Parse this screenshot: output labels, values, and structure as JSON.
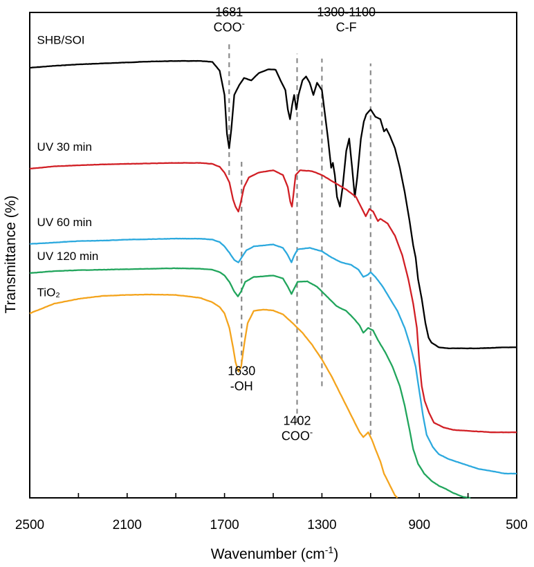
{
  "chart_data": {
    "type": "line",
    "xlabel": "Wavenumber (cm",
    "xlabel_sup": "-1",
    "xlabel_close": ")",
    "ylabel": "Transmittance (%)",
    "xlim": [
      2500,
      500
    ],
    "ylim": [
      0,
      100
    ],
    "x_reversed": true,
    "x_ticks": [
      2500,
      2100,
      1700,
      1300,
      900,
      500
    ],
    "grid": false,
    "series": [
      {
        "name": "SHB/SOI",
        "color": "#000000",
        "points": [
          [
            2500,
            88.6
          ],
          [
            2400,
            89.0
          ],
          [
            2300,
            89.3
          ],
          [
            2200,
            89.5
          ],
          [
            2100,
            89.7
          ],
          [
            2000,
            89.9
          ],
          [
            1900,
            90.0
          ],
          [
            1800,
            90.0
          ],
          [
            1750,
            89.8
          ],
          [
            1720,
            88.0
          ],
          [
            1700,
            83.0
          ],
          [
            1690,
            75.0
          ],
          [
            1681,
            72.0
          ],
          [
            1672,
            76.0
          ],
          [
            1660,
            83.0
          ],
          [
            1640,
            85.0
          ],
          [
            1620,
            86.5
          ],
          [
            1590,
            86.0
          ],
          [
            1560,
            87.5
          ],
          [
            1520,
            88.3
          ],
          [
            1490,
            88.2
          ],
          [
            1470,
            86.0
          ],
          [
            1450,
            84.0
          ],
          [
            1440,
            80.0
          ],
          [
            1431,
            78.0
          ],
          [
            1422,
            81.0
          ],
          [
            1414,
            83.0
          ],
          [
            1405,
            80.0
          ],
          [
            1396,
            83.0
          ],
          [
            1380,
            86.0
          ],
          [
            1365,
            86.8
          ],
          [
            1350,
            85.5
          ],
          [
            1335,
            83.0
          ],
          [
            1320,
            85.5
          ],
          [
            1300,
            84.0
          ],
          [
            1290,
            80.0
          ],
          [
            1275,
            74.0
          ],
          [
            1262,
            68.0
          ],
          [
            1255,
            69.0
          ],
          [
            1247,
            66.5
          ],
          [
            1238,
            62.0
          ],
          [
            1226,
            60.0
          ],
          [
            1215,
            64.0
          ],
          [
            1200,
            71.5
          ],
          [
            1188,
            74.0
          ],
          [
            1176,
            68.0
          ],
          [
            1165,
            62.0
          ],
          [
            1155,
            66.0
          ],
          [
            1140,
            74.0
          ],
          [
            1128,
            77.5
          ],
          [
            1118,
            79.0
          ],
          [
            1100,
            80.0
          ],
          [
            1080,
            78.5
          ],
          [
            1060,
            78.0
          ],
          [
            1045,
            75.5
          ],
          [
            1035,
            76.0
          ],
          [
            1020,
            74.5
          ],
          [
            1000,
            72.0
          ],
          [
            980,
            68.0
          ],
          [
            960,
            63.0
          ],
          [
            940,
            57.0
          ],
          [
            925,
            52.0
          ],
          [
            915,
            49.5
          ],
          [
            905,
            45.0
          ],
          [
            890,
            41.0
          ],
          [
            875,
            36.0
          ],
          [
            862,
            33.0
          ],
          [
            850,
            32.0
          ],
          [
            820,
            31.0
          ],
          [
            780,
            30.8
          ],
          [
            720,
            30.8
          ],
          [
            660,
            30.8
          ],
          [
            600,
            30.9
          ],
          [
            550,
            31.0
          ],
          [
            500,
            31.0
          ]
        ]
      },
      {
        "name": "UV 30 min",
        "color": "#d11f25",
        "points": [
          [
            2500,
            67.8
          ],
          [
            2400,
            68.3
          ],
          [
            2300,
            68.5
          ],
          [
            2200,
            68.7
          ],
          [
            2100,
            68.8
          ],
          [
            2000,
            68.9
          ],
          [
            1900,
            69.0
          ],
          [
            1800,
            69.0
          ],
          [
            1750,
            68.8
          ],
          [
            1720,
            68.2
          ],
          [
            1700,
            67.0
          ],
          [
            1680,
            65.0
          ],
          [
            1665,
            61.5
          ],
          [
            1655,
            60.0
          ],
          [
            1643,
            59.0
          ],
          [
            1635,
            60.5
          ],
          [
            1620,
            64.0
          ],
          [
            1600,
            66.0
          ],
          [
            1560,
            67.0
          ],
          [
            1500,
            67.5
          ],
          [
            1460,
            66.5
          ],
          [
            1440,
            64.0
          ],
          [
            1430,
            61.0
          ],
          [
            1423,
            60.0
          ],
          [
            1418,
            62.0
          ],
          [
            1408,
            66.5
          ],
          [
            1390,
            67.5
          ],
          [
            1340,
            67.3
          ],
          [
            1300,
            66.5
          ],
          [
            1250,
            65.0
          ],
          [
            1200,
            63.5
          ],
          [
            1160,
            62.0
          ],
          [
            1140,
            60.0
          ],
          [
            1120,
            58.0
          ],
          [
            1105,
            59.5
          ],
          [
            1090,
            59.0
          ],
          [
            1070,
            57.0
          ],
          [
            1060,
            57.5
          ],
          [
            1030,
            56.5
          ],
          [
            1000,
            54.0
          ],
          [
            970,
            50.0
          ],
          [
            945,
            45.0
          ],
          [
            925,
            40.0
          ],
          [
            910,
            35.0
          ],
          [
            900,
            28.0
          ],
          [
            890,
            23.0
          ],
          [
            878,
            20.0
          ],
          [
            860,
            17.5
          ],
          [
            840,
            15.5
          ],
          [
            800,
            14.5
          ],
          [
            760,
            14.0
          ],
          [
            700,
            13.8
          ],
          [
            600,
            13.5
          ],
          [
            550,
            13.5
          ],
          [
            500,
            13.5
          ]
        ]
      },
      {
        "name": "UV 60 min",
        "color": "#2ca9de",
        "points": [
          [
            2500,
            52.3
          ],
          [
            2400,
            52.6
          ],
          [
            2300,
            52.9
          ],
          [
            2200,
            53.0
          ],
          [
            2100,
            53.2
          ],
          [
            2000,
            53.3
          ],
          [
            1900,
            53.4
          ],
          [
            1800,
            53.4
          ],
          [
            1750,
            53.2
          ],
          [
            1720,
            52.7
          ],
          [
            1700,
            51.8
          ],
          [
            1680,
            50.5
          ],
          [
            1660,
            49.0
          ],
          [
            1643,
            48.5
          ],
          [
            1630,
            49.5
          ],
          [
            1610,
            51.0
          ],
          [
            1580,
            51.8
          ],
          [
            1500,
            52.2
          ],
          [
            1460,
            51.5
          ],
          [
            1440,
            50.0
          ],
          [
            1425,
            48.5
          ],
          [
            1415,
            49.8
          ],
          [
            1400,
            51.2
          ],
          [
            1350,
            51.5
          ],
          [
            1300,
            50.8
          ],
          [
            1260,
            49.5
          ],
          [
            1220,
            48.5
          ],
          [
            1180,
            48.0
          ],
          [
            1150,
            47.0
          ],
          [
            1130,
            45.5
          ],
          [
            1110,
            46.0
          ],
          [
            1100,
            46.5
          ],
          [
            1080,
            45.5
          ],
          [
            1050,
            43.5
          ],
          [
            1020,
            41.0
          ],
          [
            990,
            38.5
          ],
          [
            960,
            35.0
          ],
          [
            935,
            31.0
          ],
          [
            915,
            27.0
          ],
          [
            900,
            22.0
          ],
          [
            885,
            17.0
          ],
          [
            870,
            13.0
          ],
          [
            845,
            10.5
          ],
          [
            820,
            9.0
          ],
          [
            780,
            8.0
          ],
          [
            720,
            7.0
          ],
          [
            660,
            6.0
          ],
          [
            600,
            5.5
          ],
          [
            550,
            5.0
          ],
          [
            500,
            5.0
          ]
        ]
      },
      {
        "name": "UV 120 min",
        "color": "#21a55c",
        "points": [
          [
            2500,
            46.3
          ],
          [
            2400,
            46.7
          ],
          [
            2300,
            46.9
          ],
          [
            2200,
            47.0
          ],
          [
            2100,
            47.1
          ],
          [
            2000,
            47.2
          ],
          [
            1900,
            47.3
          ],
          [
            1800,
            47.2
          ],
          [
            1750,
            47.0
          ],
          [
            1720,
            46.5
          ],
          [
            1700,
            45.8
          ],
          [
            1680,
            44.5
          ],
          [
            1660,
            42.5
          ],
          [
            1645,
            41.5
          ],
          [
            1632,
            42.5
          ],
          [
            1615,
            44.5
          ],
          [
            1580,
            45.5
          ],
          [
            1500,
            45.8
          ],
          [
            1460,
            45.2
          ],
          [
            1440,
            43.5
          ],
          [
            1425,
            42.0
          ],
          [
            1415,
            43.0
          ],
          [
            1400,
            44.5
          ],
          [
            1360,
            44.6
          ],
          [
            1320,
            43.5
          ],
          [
            1280,
            41.5
          ],
          [
            1240,
            39.5
          ],
          [
            1200,
            38.5
          ],
          [
            1170,
            37.0
          ],
          [
            1145,
            35.5
          ],
          [
            1130,
            34.0
          ],
          [
            1120,
            34.5
          ],
          [
            1110,
            35.0
          ],
          [
            1090,
            34.5
          ],
          [
            1070,
            32.5
          ],
          [
            1040,
            30.0
          ],
          [
            1010,
            27.0
          ],
          [
            980,
            23.0
          ],
          [
            960,
            19.0
          ],
          [
            940,
            14.0
          ],
          [
            925,
            10.0
          ],
          [
            905,
            7.0
          ],
          [
            880,
            5.0
          ],
          [
            850,
            3.5
          ],
          [
            820,
            2.5
          ],
          [
            790,
            1.8
          ],
          [
            760,
            1.0
          ],
          [
            720,
            0.2
          ],
          [
            690,
            0.0
          ]
        ]
      },
      {
        "name": "TiO₂",
        "color": "#f4a41d",
        "points": [
          [
            2500,
            38.0
          ],
          [
            2400,
            40.0
          ],
          [
            2300,
            41.0
          ],
          [
            2200,
            41.6
          ],
          [
            2100,
            41.8
          ],
          [
            2000,
            41.9
          ],
          [
            1900,
            41.8
          ],
          [
            1800,
            41.2
          ],
          [
            1750,
            40.3
          ],
          [
            1720,
            39.3
          ],
          [
            1700,
            38.0
          ],
          [
            1680,
            35.0
          ],
          [
            1665,
            31.0
          ],
          [
            1655,
            28.0
          ],
          [
            1643,
            26.0
          ],
          [
            1632,
            27.0
          ],
          [
            1618,
            32.0
          ],
          [
            1605,
            36.0
          ],
          [
            1580,
            38.5
          ],
          [
            1540,
            38.8
          ],
          [
            1500,
            38.6
          ],
          [
            1460,
            37.8
          ],
          [
            1420,
            36.0
          ],
          [
            1380,
            34.0
          ],
          [
            1340,
            31.5
          ],
          [
            1300,
            28.5
          ],
          [
            1260,
            25.0
          ],
          [
            1220,
            21.0
          ],
          [
            1190,
            18.0
          ],
          [
            1165,
            15.5
          ],
          [
            1145,
            13.5
          ],
          [
            1130,
            12.5
          ],
          [
            1120,
            13.0
          ],
          [
            1110,
            13.5
          ],
          [
            1095,
            12.0
          ],
          [
            1080,
            10.0
          ],
          [
            1060,
            7.5
          ],
          [
            1045,
            5.0
          ],
          [
            1020,
            2.5
          ],
          [
            1000,
            0.5
          ],
          [
            990,
            0.0
          ]
        ]
      }
    ],
    "series_labels": [
      {
        "text": "SHB/SOI",
        "x": 2470,
        "y": 93.5
      },
      {
        "text": "UV 30 min",
        "x": 2470,
        "y": 71.5
      },
      {
        "text": "UV 60 min",
        "x": 2470,
        "y": 56.0
      },
      {
        "text": "UV 120 min",
        "x": 2470,
        "y": 49.0
      },
      {
        "text": "TiO₂",
        "x": 2470,
        "y": 41.5
      }
    ],
    "reference_lines": [
      {
        "x": 1681,
        "y_from": 66.5,
        "y_to": 93.5
      },
      {
        "x": 1630,
        "y_from": 27.5,
        "y_to": 70.0
      },
      {
        "x": 1402,
        "y_from": 15.5,
        "y_to": 91.5
      },
      {
        "x": 1300,
        "y_from": 23.0,
        "y_to": 90.5
      },
      {
        "x": 1100,
        "y_from": 13.0,
        "y_to": 89.5
      }
    ],
    "annotations": [
      {
        "lines": [
          "1681",
          "COO"
        ],
        "sup": "-",
        "x": 1681,
        "y": 99.2
      },
      {
        "lines": [
          "1300-1100",
          "C-F"
        ],
        "x": 1200,
        "y": 99.2
      },
      {
        "lines": [
          "1630",
          "-OH"
        ],
        "x": 1630,
        "y": 25.3
      },
      {
        "lines": [
          "1402",
          "COO"
        ],
        "sup": "-",
        "x": 1402,
        "y": 15.0
      }
    ]
  }
}
